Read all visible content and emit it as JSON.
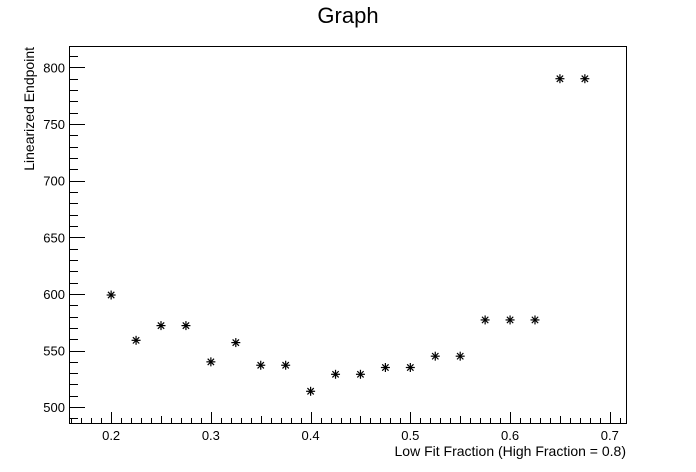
{
  "chart_data": {
    "type": "scatter",
    "title": "Graph",
    "xlabel": "Low Fit Fraction (High Fraction  = 0.8)",
    "ylabel": "Linearized Endpoint",
    "xlim": [
      0.15875,
      0.71625
    ],
    "ylim": [
      486,
      818
    ],
    "x_major_ticks": [
      0.2,
      0.3,
      0.4,
      0.5,
      0.6,
      0.7
    ],
    "x_tick_labels": [
      "0.2",
      "0.3",
      "0.4",
      "0.5",
      "0.6",
      "0.7"
    ],
    "y_major_ticks": [
      500,
      550,
      600,
      650,
      700,
      750,
      800
    ],
    "y_tick_labels": [
      "500",
      "550",
      "600",
      "650",
      "700",
      "750",
      "800"
    ],
    "x_minor_step": 0.01,
    "y_minor_step": 10,
    "marker": "asterisk",
    "grid": false,
    "series": [
      {
        "x": [
          0.2,
          0.225,
          0.25,
          0.275,
          0.3,
          0.325,
          0.35,
          0.375,
          0.4,
          0.425,
          0.45,
          0.475,
          0.5,
          0.525,
          0.55,
          0.575,
          0.6,
          0.625,
          0.65,
          0.675
        ],
        "y": [
          599,
          559,
          572,
          572,
          540,
          557,
          537,
          537,
          514,
          529,
          529,
          535,
          535,
          545,
          545,
          577,
          577,
          577,
          790,
          790
        ]
      }
    ]
  }
}
